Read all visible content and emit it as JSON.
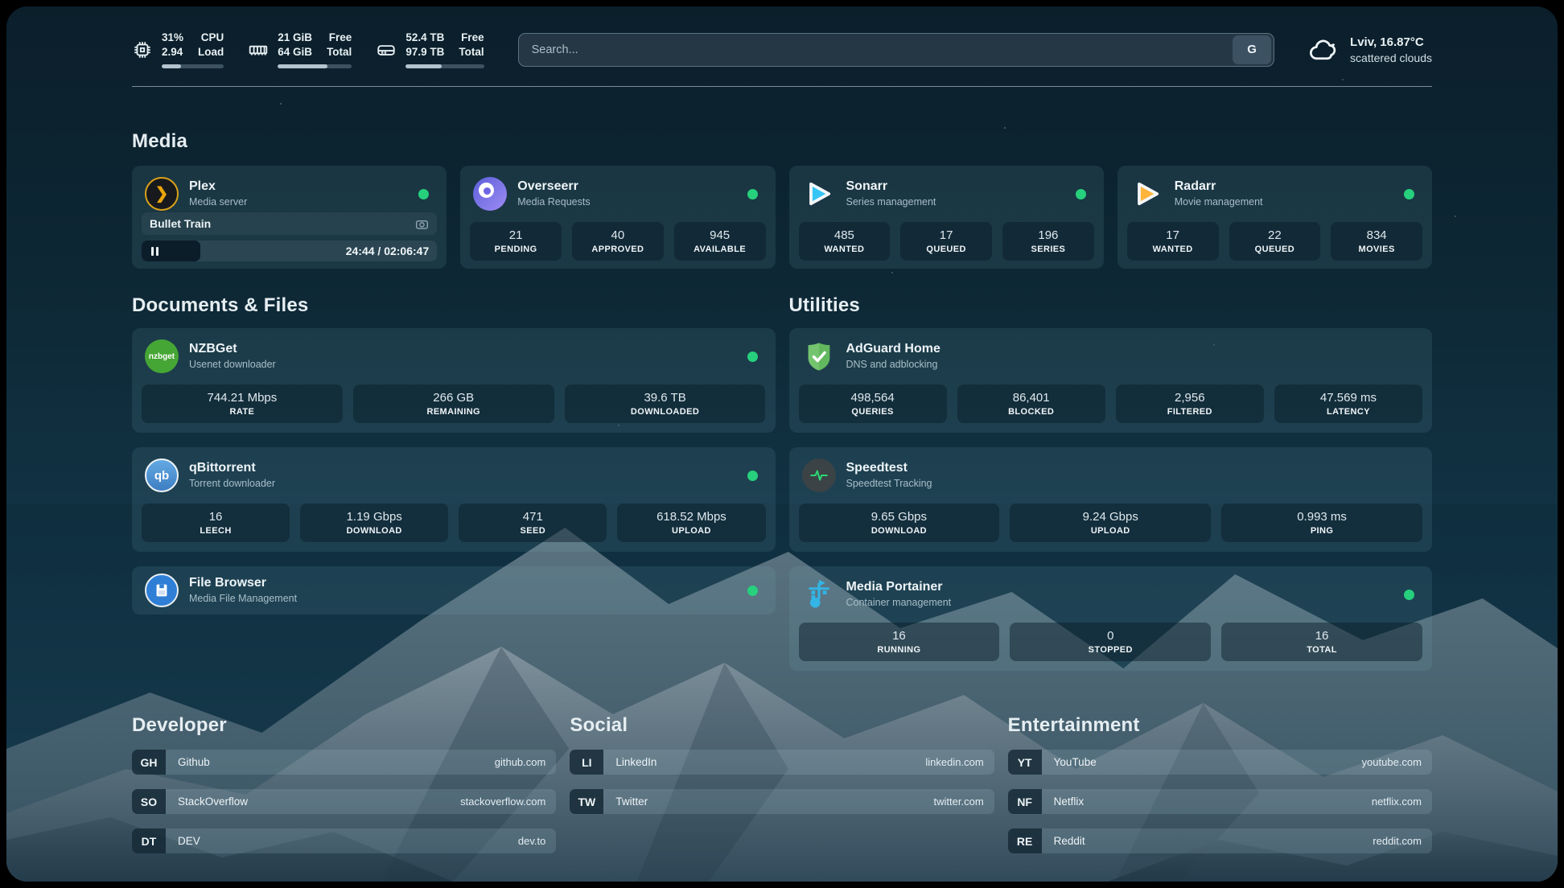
{
  "colors": {
    "status_online": "#26d07c",
    "plex_amber": "#e5a00d",
    "overseerr_purple": "#7b6ef0",
    "sonarr_blue": "#35c5f4",
    "radarr_gold": "#ffb53c",
    "nzbget_green": "#46a635",
    "qbittorrent_blue": "#4f94d6",
    "filebrowser_blue": "#2f7fd6",
    "adguard_green": "#62b85e",
    "speedtest_green": "#2dd673",
    "portainer_blue": "#33b5e5"
  },
  "header": {
    "cpu": {
      "value_top": "31%",
      "value_bottom": "2.94",
      "label_top": "CPU",
      "label_bottom": "Load",
      "progress": 31
    },
    "memory": {
      "value_top": "21 GiB",
      "value_bottom": "64 GiB",
      "label_top": "Free",
      "label_bottom": "Total",
      "progress": 67
    },
    "disk": {
      "value_top": "52.4 TB",
      "value_bottom": "97.9 TB",
      "label_top": "Free",
      "label_bottom": "Total",
      "progress": 46
    },
    "search": {
      "placeholder": "Search...",
      "engine_button": "G"
    },
    "weather": {
      "location": "Lviv, 16.87°C",
      "condition": "scattered clouds"
    }
  },
  "sections": {
    "media": "Media",
    "documents": "Documents & Files",
    "utilities": "Utilities",
    "developer": "Developer",
    "social": "Social",
    "entertainment": "Entertainment"
  },
  "apps": {
    "plex": {
      "name": "Plex",
      "desc": "Media server",
      "now_playing": "Bullet Train",
      "time": "24:44 / 02:06:47",
      "progress_percent": 20
    },
    "overseerr": {
      "name": "Overseerr",
      "desc": "Media Requests",
      "stats": [
        {
          "value": "21",
          "label": "PENDING"
        },
        {
          "value": "40",
          "label": "APPROVED"
        },
        {
          "value": "945",
          "label": "AVAILABLE"
        }
      ]
    },
    "sonarr": {
      "name": "Sonarr",
      "desc": "Series management",
      "stats": [
        {
          "value": "485",
          "label": "WANTED"
        },
        {
          "value": "17",
          "label": "QUEUED"
        },
        {
          "value": "196",
          "label": "SERIES"
        }
      ]
    },
    "radarr": {
      "name": "Radarr",
      "desc": "Movie management",
      "stats": [
        {
          "value": "17",
          "label": "WANTED"
        },
        {
          "value": "22",
          "label": "QUEUED"
        },
        {
          "value": "834",
          "label": "MOVIES"
        }
      ]
    },
    "nzbget": {
      "name": "NZBGet",
      "desc": "Usenet downloader",
      "stats": [
        {
          "value": "744.21 Mbps",
          "label": "RATE"
        },
        {
          "value": "266 GB",
          "label": "REMAINING"
        },
        {
          "value": "39.6 TB",
          "label": "DOWNLOADED"
        }
      ]
    },
    "qbittorrent": {
      "name": "qBittorrent",
      "desc": "Torrent downloader",
      "stats": [
        {
          "value": "16",
          "label": "LEECH"
        },
        {
          "value": "1.19 Gbps",
          "label": "DOWNLOAD"
        },
        {
          "value": "471",
          "label": "SEED"
        },
        {
          "value": "618.52 Mbps",
          "label": "UPLOAD"
        }
      ]
    },
    "filebrowser": {
      "name": "File Browser",
      "desc": "Media File Management"
    },
    "adguard": {
      "name": "AdGuard Home",
      "desc": "DNS and adblocking",
      "stats": [
        {
          "value": "498,564",
          "label": "QUERIES"
        },
        {
          "value": "86,401",
          "label": "BLOCKED"
        },
        {
          "value": "2,956",
          "label": "FILTERED"
        },
        {
          "value": "47.569 ms",
          "label": "LATENCY"
        }
      ]
    },
    "speedtest": {
      "name": "Speedtest",
      "desc": "Speedtest Tracking",
      "stats": [
        {
          "value": "9.65 Gbps",
          "label": "DOWNLOAD"
        },
        {
          "value": "9.24 Gbps",
          "label": "UPLOAD"
        },
        {
          "value": "0.993 ms",
          "label": "PING"
        }
      ]
    },
    "portainer": {
      "name": "Media Portainer",
      "desc": "Container management",
      "stats": [
        {
          "value": "16",
          "label": "RUNNING"
        },
        {
          "value": "0",
          "label": "STOPPED"
        },
        {
          "value": "16",
          "label": "TOTAL"
        }
      ]
    }
  },
  "logo_texts": {
    "nzbget": "nzbget",
    "qbittorrent": "qb"
  },
  "links": {
    "developer": [
      {
        "abbr": "GH",
        "name": "Github",
        "url": "github.com"
      },
      {
        "abbr": "SO",
        "name": "StackOverflow",
        "url": "stackoverflow.com"
      },
      {
        "abbr": "DT",
        "name": "DEV",
        "url": "dev.to"
      }
    ],
    "social": [
      {
        "abbr": "LI",
        "name": "LinkedIn",
        "url": "linkedin.com"
      },
      {
        "abbr": "TW",
        "name": "Twitter",
        "url": "twitter.com"
      }
    ],
    "entertainment": [
      {
        "abbr": "YT",
        "name": "YouTube",
        "url": "youtube.com"
      },
      {
        "abbr": "NF",
        "name": "Netflix",
        "url": "netflix.com"
      },
      {
        "abbr": "RE",
        "name": "Reddit",
        "url": "reddit.com"
      }
    ]
  }
}
